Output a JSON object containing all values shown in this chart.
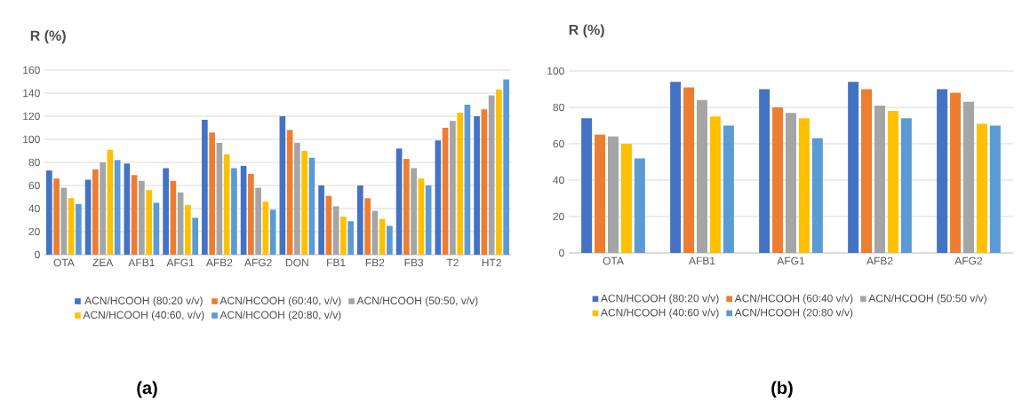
{
  "chart_data": [
    {
      "type": "bar",
      "title": "R (%)",
      "categories": [
        "OTA",
        "ZEA",
        "AFB1",
        "AFG1",
        "AFB2",
        "AFG2",
        "DON",
        "FB1",
        "FB2",
        "FB3",
        "T2",
        "HT2"
      ],
      "series": [
        {
          "name": "ACN/HCOOH (80:20 v/v)",
          "color": "#4472c4",
          "values": [
            73,
            65,
            79,
            75,
            117,
            77,
            120,
            60,
            60,
            92,
            99,
            120
          ]
        },
        {
          "name": "ACN/HCOOH (60:40, v/v)",
          "color": "#ed7d31",
          "values": [
            66,
            74,
            69,
            64,
            106,
            70,
            108,
            51,
            49,
            83,
            110,
            126
          ]
        },
        {
          "name": "ACN/HCOOH (50:50, v/v)",
          "color": "#a5a5a5",
          "values": [
            58,
            80,
            64,
            54,
            97,
            58,
            97,
            42,
            38,
            75,
            116,
            138
          ]
        },
        {
          "name": "ACN/HCOOH (40:60, v/v)",
          "color": "#ffc000",
          "values": [
            49,
            91,
            56,
            43,
            87,
            46,
            90,
            33,
            31,
            66,
            123,
            143
          ]
        },
        {
          "name": "ACN/HCOOH (20:80, v/v)",
          "color": "#5b9bd5",
          "values": [
            44,
            82,
            45,
            32,
            75,
            39,
            84,
            29,
            25,
            60,
            130,
            152
          ]
        }
      ],
      "ylim": [
        0,
        160
      ],
      "yticks": [
        0,
        20,
        40,
        60,
        80,
        100,
        120,
        140,
        160
      ],
      "grid": "y",
      "legend": "bottom",
      "annotations": [
        "(a)"
      ]
    },
    {
      "type": "bar",
      "title": "R (%)",
      "categories": [
        "OTA",
        "AFB1",
        "AFG1",
        "AFB2",
        "AFG2"
      ],
      "series": [
        {
          "name": "ACN/HCOOH (80:20 v/v)",
          "color": "#4472c4",
          "values": [
            74,
            94,
            90,
            94,
            90
          ]
        },
        {
          "name": "ACN/HCOOH (60:40 v/v)",
          "color": "#ed7d31",
          "values": [
            65,
            91,
            80,
            90,
            88
          ]
        },
        {
          "name": "ACN/HCOOH (50:50 v/v)",
          "color": "#a5a5a5",
          "values": [
            64,
            84,
            77,
            81,
            83
          ]
        },
        {
          "name": "ACN/HCOOH (40:60 v/v)",
          "color": "#ffc000",
          "values": [
            60,
            75,
            74,
            78,
            71
          ]
        },
        {
          "name": "ACN/HCOOH (20:80 v/v)",
          "color": "#5b9bd5",
          "values": [
            52,
            70,
            63,
            74,
            70
          ]
        }
      ],
      "ylim": [
        0,
        100
      ],
      "yticks": [
        0,
        20,
        40,
        60,
        80,
        100
      ],
      "grid": "y",
      "legend": "bottom",
      "annotations": [
        "(b)"
      ]
    }
  ]
}
